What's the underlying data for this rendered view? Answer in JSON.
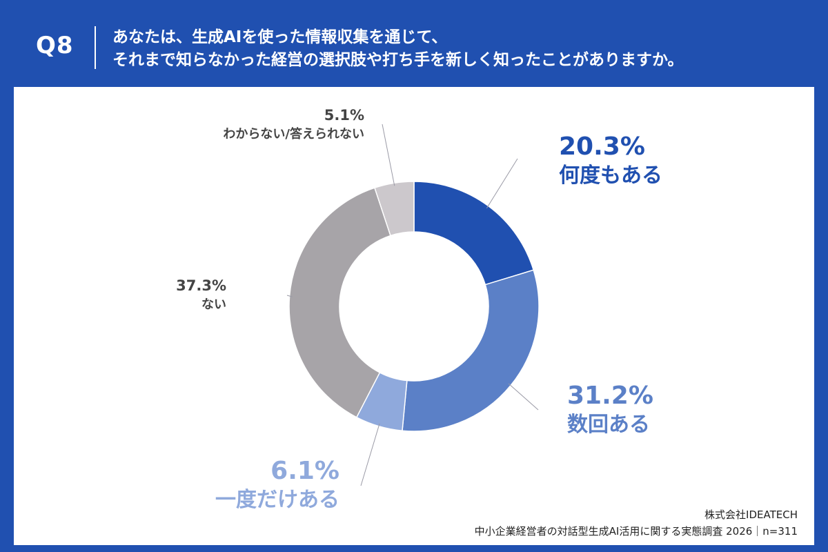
{
  "header": {
    "question_label": "Q8",
    "question_line1": "あなたは、生成AIを使った情報収集を通じて、",
    "question_line2": "それまで知らなかった経営の選択肢や打ち手を新しく知ったことがありますか。"
  },
  "footer": {
    "company": "株式会社IDEATECH",
    "survey": "中小企業経営者の対話型生成AI活用に関する実態調査 2026｜n=311"
  },
  "colors": {
    "frame": "#2050b0",
    "panel": "#ffffff"
  },
  "chart_data": {
    "type": "pie",
    "variant": "donut",
    "start_angle_deg": 0,
    "direction": "clockwise",
    "slices": [
      {
        "value": 20.3,
        "value_label": "20.3%",
        "category": "何度もある",
        "color": "#2050b0",
        "label_color": "#2050b0",
        "label_size": "large"
      },
      {
        "value": 31.2,
        "value_label": "31.2%",
        "category": "数回ある",
        "color": "#5b80c7",
        "label_color": "#5b80c7",
        "label_size": "large"
      },
      {
        "value": 6.1,
        "value_label": "6.1%",
        "category": "一度だけある",
        "color": "#8fa9dc",
        "label_color": "#8fa9dc",
        "label_size": "large"
      },
      {
        "value": 37.3,
        "value_label": "37.3%",
        "category": "ない",
        "color": "#a7a4a8",
        "label_color": "#444444",
        "label_size": "small"
      },
      {
        "value": 5.1,
        "value_label": "5.1%",
        "category": "わからない/答えられない",
        "color": "#ccc8cc",
        "label_color": "#444444",
        "label_size": "small"
      }
    ]
  }
}
